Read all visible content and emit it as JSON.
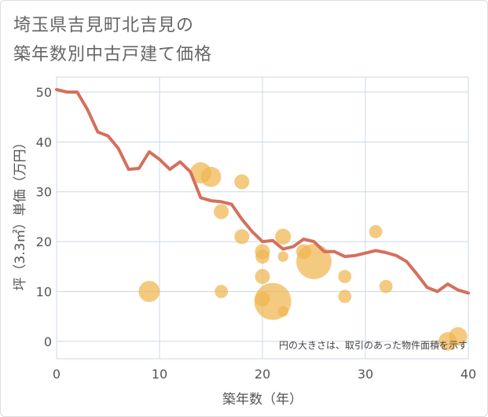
{
  "title_lines": [
    "埼玉県吉見町北吉見の",
    "築年数別中古戸建て価格"
  ],
  "chart_data": {
    "type": "scatter",
    "xlabel": "築年数（年）",
    "ylabel": "坪（3.3㎡）単価（万円）",
    "xlim": [
      0,
      40
    ],
    "ylim": [
      -3.5,
      53
    ],
    "xticks": [
      0,
      10,
      20,
      30,
      40
    ],
    "yticks": [
      0,
      10,
      20,
      30,
      40,
      50
    ],
    "grid": true,
    "annotation": "円の大きさは、取引のあった物件面積を示す",
    "colors": {
      "line": "#d4705c",
      "bubble": "#f0b550",
      "grid": "#cdd8e6"
    },
    "series": [
      {
        "kind": "line",
        "x": [
          0,
          1,
          2,
          3,
          4,
          5,
          6,
          7,
          8,
          9,
          10,
          11,
          12,
          13,
          14,
          15,
          16,
          17,
          18,
          19,
          20,
          21,
          22,
          23,
          24,
          25,
          26,
          27,
          28,
          29,
          30,
          31,
          32,
          33,
          34,
          35,
          36,
          37,
          38,
          39,
          40
        ],
        "y": [
          50.5,
          50,
          50,
          46.5,
          42,
          41.2,
          38.7,
          34.5,
          34.7,
          38,
          36.5,
          34.5,
          36,
          34,
          28.8,
          28.2,
          28,
          27.5,
          24.5,
          22,
          20,
          20.2,
          18.5,
          19,
          20.5,
          20,
          18,
          18,
          17,
          17.2,
          17.7,
          18.2,
          17.8,
          17.2,
          16,
          13.5,
          10.8,
          10,
          11.5,
          10.3,
          9.7
        ]
      },
      {
        "kind": "bubble",
        "points": [
          {
            "x": 9,
            "y": 10,
            "size": 2.4
          },
          {
            "x": 14,
            "y": 33.8,
            "size": 2.4
          },
          {
            "x": 15,
            "y": 33,
            "size": 2.3
          },
          {
            "x": 16,
            "y": 26,
            "size": 1.7
          },
          {
            "x": 16,
            "y": 10,
            "size": 1.5
          },
          {
            "x": 18,
            "y": 32,
            "size": 1.7
          },
          {
            "x": 18,
            "y": 21,
            "size": 1.7
          },
          {
            "x": 20,
            "y": 18,
            "size": 1.7
          },
          {
            "x": 20,
            "y": 17,
            "size": 1.6
          },
          {
            "x": 20,
            "y": 13,
            "size": 1.7
          },
          {
            "x": 20,
            "y": 8.5,
            "size": 1.7
          },
          {
            "x": 21,
            "y": 8,
            "size": 4.2
          },
          {
            "x": 22,
            "y": 21,
            "size": 1.8
          },
          {
            "x": 22,
            "y": 17,
            "size": 1.2
          },
          {
            "x": 22,
            "y": 6,
            "size": 1.2
          },
          {
            "x": 24,
            "y": 18,
            "size": 1.7
          },
          {
            "x": 25,
            "y": 16,
            "size": 4.0
          },
          {
            "x": 28,
            "y": 13,
            "size": 1.5
          },
          {
            "x": 28,
            "y": 9,
            "size": 1.5
          },
          {
            "x": 31,
            "y": 22,
            "size": 1.5
          },
          {
            "x": 32,
            "y": 11,
            "size": 1.5
          },
          {
            "x": 38,
            "y": 0,
            "size": 2.1
          },
          {
            "x": 39,
            "y": 1,
            "size": 2.1
          }
        ]
      }
    ]
  }
}
